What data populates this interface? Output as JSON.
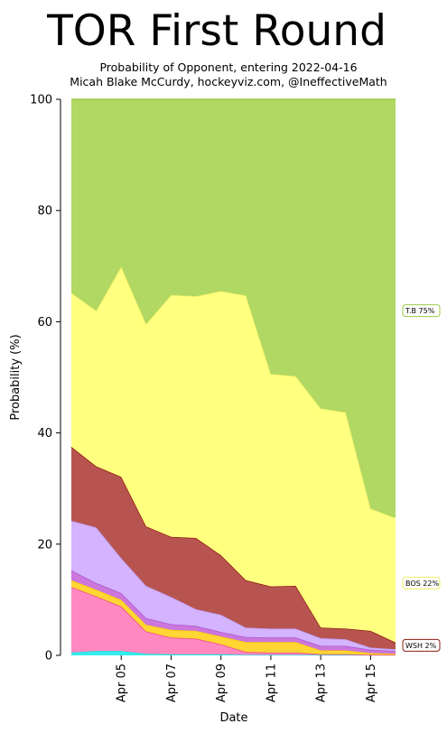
{
  "chart_data": {
    "type": "area",
    "stacked": true,
    "title": "TOR First Round",
    "subtitle_line1": "Probability of Opponent, entering 2022-04-16",
    "subtitle_line2": "Micah Blake McCurdy, hockeyviz.com, @IneffectiveMath",
    "xlabel": "Date",
    "ylabel": "Probability (%)",
    "ylim": [
      0,
      100
    ],
    "y_ticks": [
      "0",
      "20",
      "40",
      "60",
      "80",
      "100"
    ],
    "x_ticks": [
      "Apr 05",
      "Apr 07",
      "Apr 09",
      "Apr 11",
      "Apr 13",
      "Apr 15"
    ],
    "x": [
      "2022-04-03",
      "2022-04-04",
      "2022-04-05",
      "2022-04-06",
      "2022-04-07",
      "2022-04-08",
      "2022-04-09",
      "2022-04-10",
      "2022-04-11",
      "2022-04-12",
      "2022-04-13",
      "2022-04-14",
      "2022-04-15",
      "2022-04-16"
    ],
    "series": [
      {
        "color": "#33eeee",
        "stroke": "#22dddd",
        "values": [
          0.5,
          0.8,
          0.8,
          0.3,
          0.2,
          0.2,
          0.2,
          0.1,
          0.1,
          0.1,
          0.1,
          0.1,
          0.1,
          0.1
        ]
      },
      {
        "color": "#ff88c0",
        "stroke": "#ee4488",
        "values": [
          11.8,
          9.8,
          8.0,
          4.0,
          3.0,
          2.8,
          1.8,
          0.5,
          0.4,
          0.4,
          0.1,
          0.1,
          0.0,
          0.0
        ]
      },
      {
        "color": "#ffd633",
        "stroke": "#ffcc00",
        "values": [
          1.2,
          1.2,
          1.2,
          1.2,
          1.4,
          1.4,
          1.4,
          1.8,
          1.9,
          1.9,
          0.7,
          0.7,
          0.3,
          0.2
        ]
      },
      {
        "color": "#cc77dd",
        "stroke": "#aa55cc",
        "values": [
          1.8,
          1.2,
          1.2,
          1.2,
          1.0,
          0.9,
          0.8,
          0.9,
          0.8,
          0.8,
          0.8,
          0.8,
          0.6,
          0.5
        ]
      },
      {
        "color": "#d4b3ff",
        "stroke": "#bb99ee",
        "values": [
          8.9,
          10.0,
          6.3,
          5.8,
          4.9,
          3.0,
          3.1,
          1.7,
          1.6,
          1.6,
          1.4,
          1.2,
          0.4,
          0.3
        ]
      },
      {
        "color": "#b85450",
        "stroke": "#8b1a10",
        "values": [
          13.3,
          11.0,
          14.6,
          10.7,
          10.8,
          12.8,
          10.7,
          8.5,
          7.6,
          7.7,
          1.9,
          1.9,
          3.0,
          1.2
        ]
      },
      {
        "name": "BOS",
        "color": "#ffff80",
        "stroke": "#eeee66",
        "values": [
          27.7,
          28.0,
          37.8,
          36.4,
          43.5,
          43.5,
          47.5,
          51.2,
          38.2,
          37.7,
          39.4,
          38.9,
          22.0,
          22.4
        ]
      },
      {
        "name": "T.B",
        "color": "#b0d862",
        "stroke": "#99cc44",
        "values": [
          34.8,
          38.0,
          30.1,
          40.4,
          35.2,
          35.4,
          34.5,
          35.3,
          49.4,
          49.8,
          55.6,
          56.3,
          73.6,
          75.3
        ]
      }
    ],
    "end_labels": [
      {
        "text": "T.B 75%",
        "value": 62,
        "border": "#99cc44"
      },
      {
        "text": "BOS 22%",
        "value": 13,
        "border": "#eeee66"
      },
      {
        "text": "WSH  2%",
        "value": 1.8,
        "border": "#8b1a10"
      }
    ],
    "grid": false,
    "legend": "right-edge labels"
  }
}
